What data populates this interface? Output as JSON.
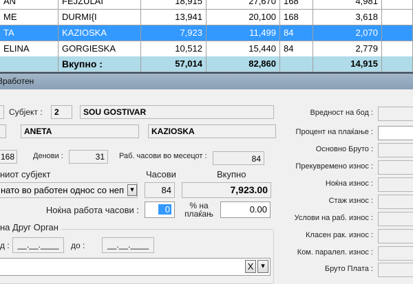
{
  "grid": {
    "rows": [
      {
        "c1": "AN",
        "c2": "FEJZULAI",
        "c3": "18,915",
        "c4": "27,670",
        "c5": "168",
        "c6": "4,981"
      },
      {
        "c1": "ME",
        "c2": "DURMI{I",
        "c3": "13,941",
        "c4": "20,100",
        "c5": "168",
        "c6": "3,618"
      },
      {
        "c1": "TA",
        "c2": "KAZIOSKA",
        "c3": "7,923",
        "c4": "11,499",
        "c5": "84",
        "c6": "2,070",
        "selected": true
      },
      {
        "c1": "ELINA",
        "c2": "GORGIESKA",
        "c3": "10,512",
        "c4": "15,440",
        "c5": "84",
        "c6": "2,779"
      }
    ],
    "total": {
      "label": "Вкупно :",
      "c3": "57,014",
      "c4": "82,860",
      "c6": "14,915"
    }
  },
  "window": {
    "title": "Вработен"
  },
  "form": {
    "subject_label": "Субјект :",
    "subject_id": "2",
    "subject_name": "SOU GOSTIVAR",
    "first_name": "ANETA",
    "last_name": "KAZIOSKA",
    "hours_full": "168",
    "days_label": "Денови :",
    "days": "31",
    "work_hours_label": "Раб. часови во месецот :",
    "work_hours": "84",
    "subject_section_label": "ниот субјект",
    "hours_label": "Часови",
    "total_label": "Вкупно",
    "employment_select": "нато во работен однос со неп",
    "hours": "84",
    "total": "7,923.00",
    "night_label": "Ноќна работа часови :",
    "night_hours": "0",
    "pct_label": "% на плаќањ",
    "pct": "0.00",
    "group_label": "на Друг Орган",
    "from_label": "д :",
    "from_value": "__.__.____",
    "to_label": "до :",
    "to_value": "__.__.____",
    "clear_btn": "X"
  },
  "right": {
    "labels": [
      "Вредност на бод :",
      "Процент на плаќање :",
      "Основно Бруто :",
      "Прекувремено износ :",
      "Ноќна износ :",
      "Стаж износ :",
      "Услови на раб. износ :",
      "Класен рак. износ :",
      "Ком. паралел. износ :",
      "Бруто Плата :"
    ]
  },
  "colors": {
    "selection": "#3399ff",
    "total_row": "#b0dbe8"
  }
}
